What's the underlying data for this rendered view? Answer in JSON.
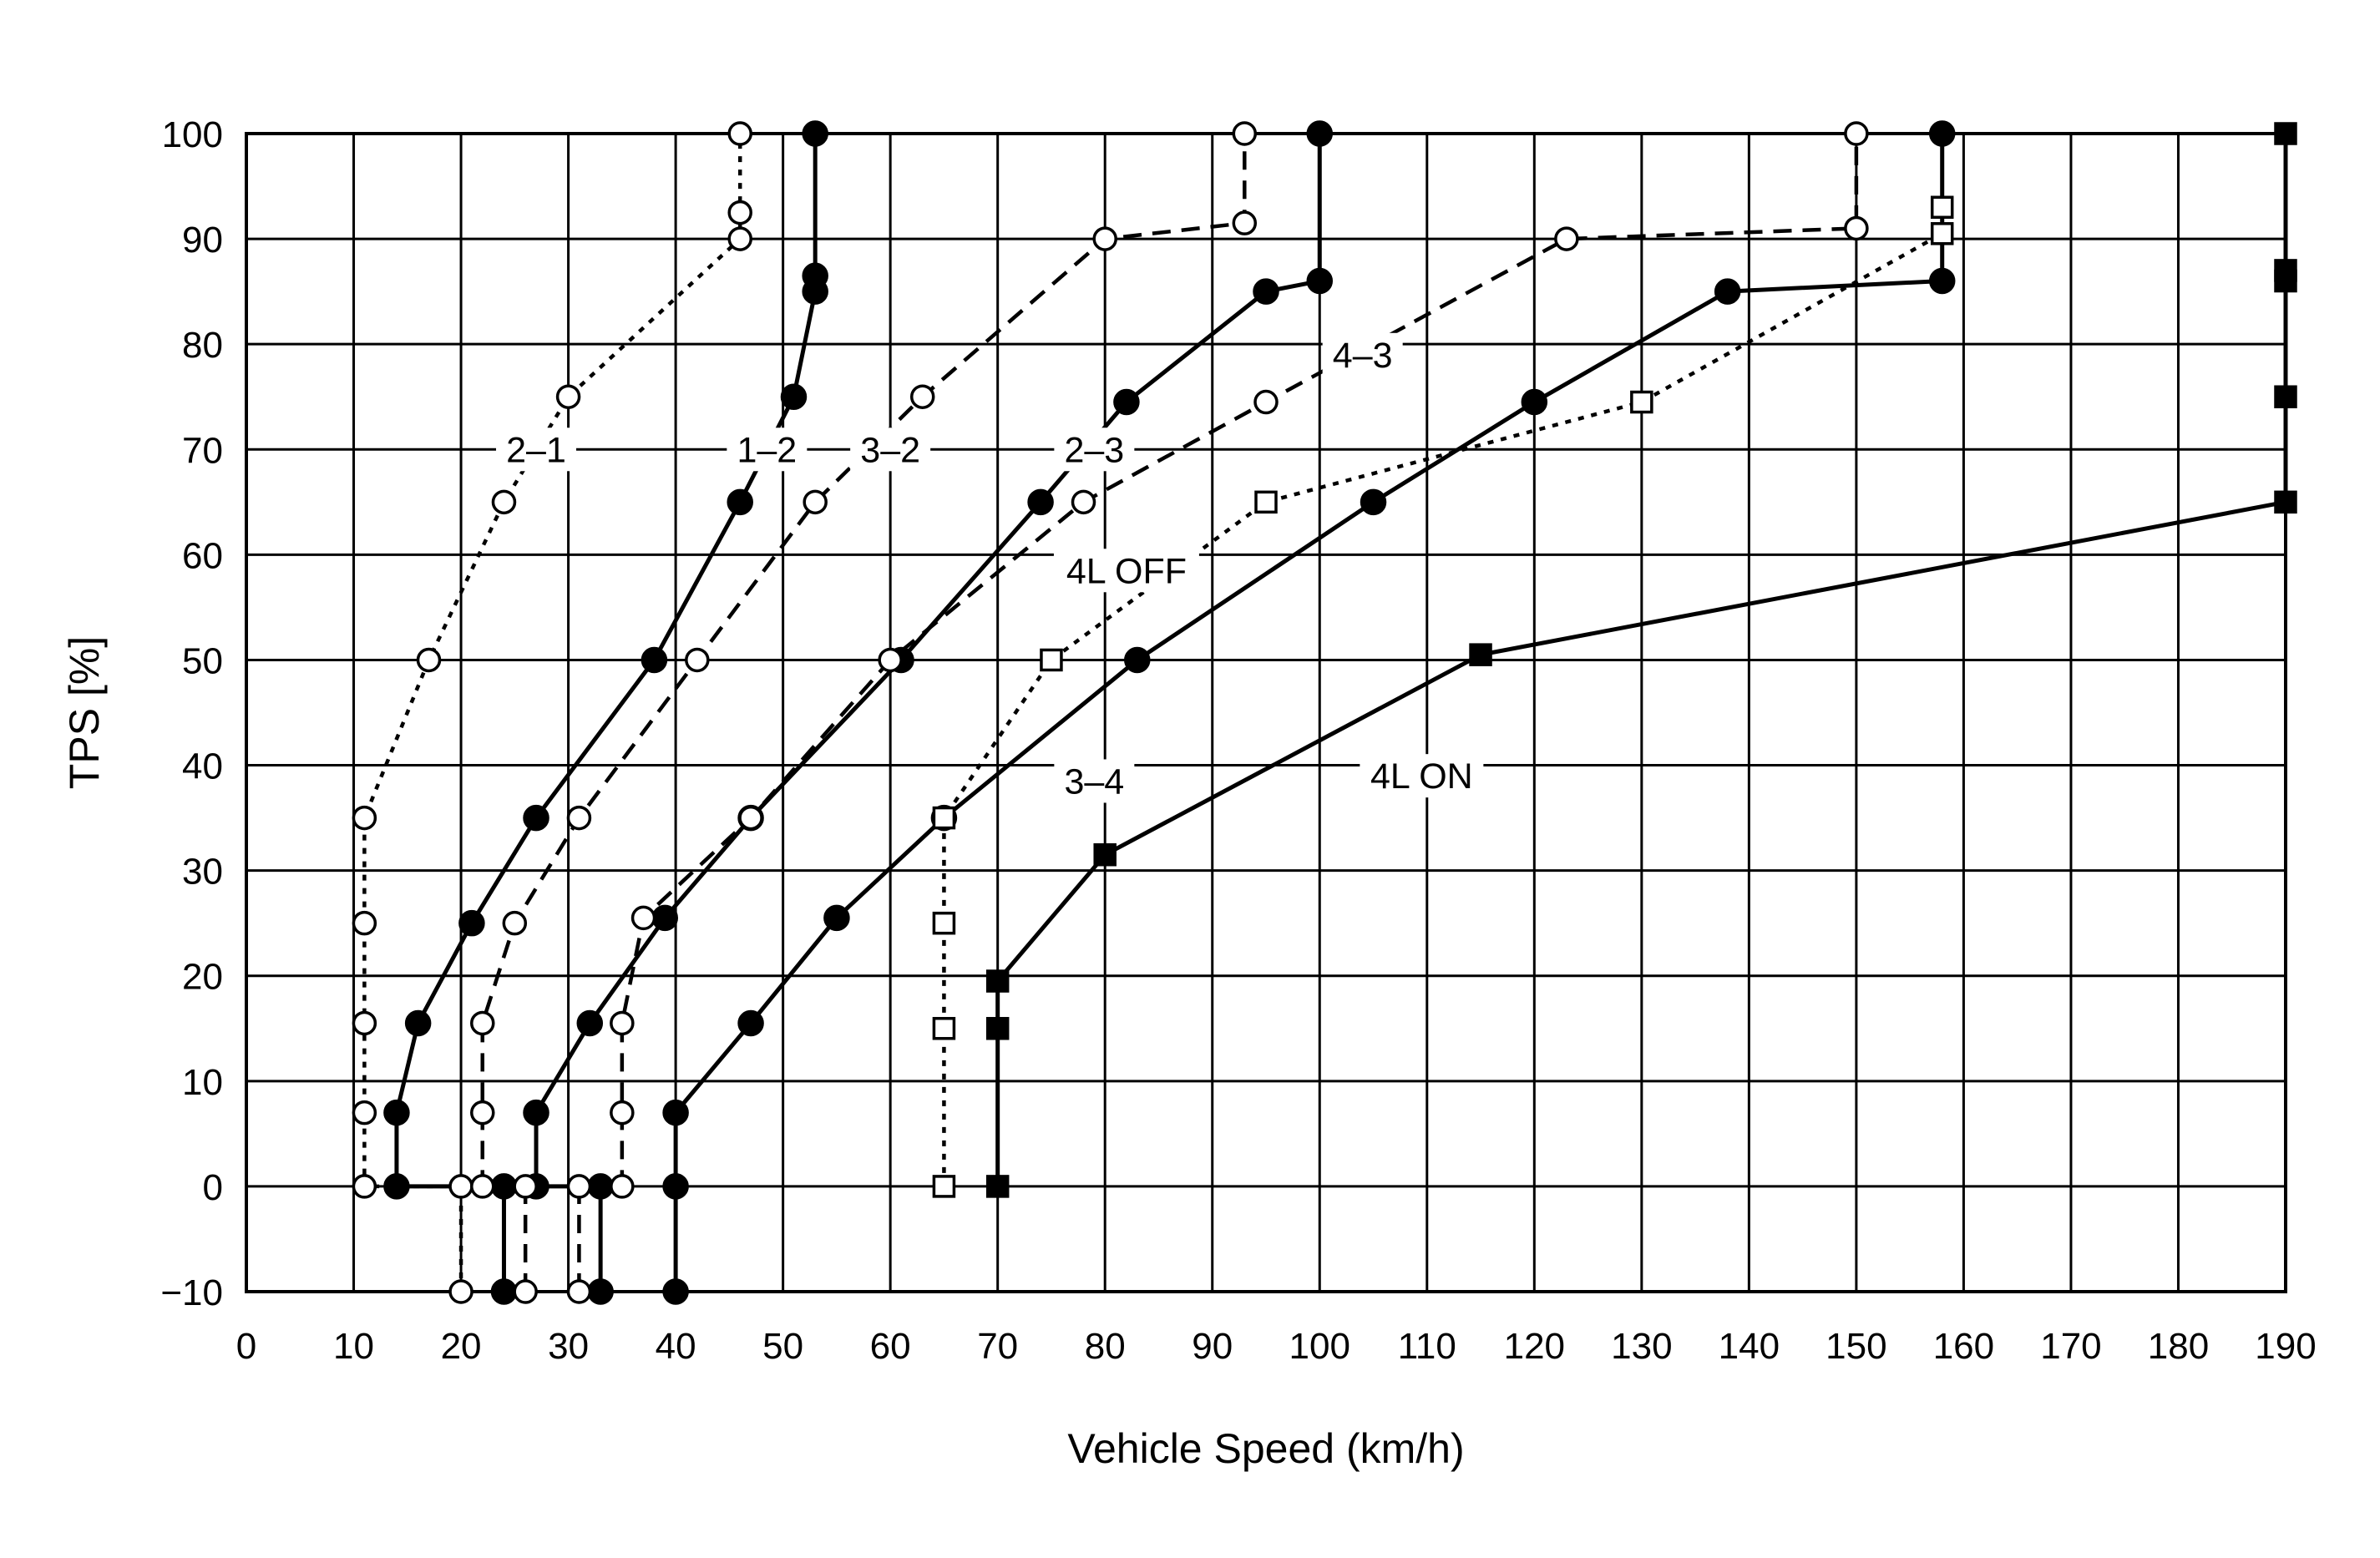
{
  "chart_data": {
    "type": "line",
    "title": "",
    "xlabel": "Vehicle Speed (km/h)",
    "ylabel": "TPS [%]",
    "xlim": [
      0,
      190
    ],
    "ylim": [
      -10,
      100
    ],
    "xticks": [
      0,
      10,
      20,
      30,
      40,
      50,
      60,
      70,
      80,
      90,
      100,
      110,
      120,
      130,
      140,
      150,
      160,
      170,
      180,
      190
    ],
    "yticks": [
      -10,
      0,
      10,
      20,
      30,
      40,
      50,
      60,
      70,
      80,
      90,
      100
    ],
    "grid": true,
    "colors": {
      "line": "#000000",
      "background": "#ffffff",
      "hollow_fill": "#ffffff"
    },
    "series": [
      {
        "name": "1-2",
        "line": "solid",
        "marker": "filled-circle",
        "x": [
          24,
          24,
          14,
          14,
          16,
          21,
          27,
          38,
          46,
          51,
          53,
          53,
          53
        ],
        "y": [
          -10,
          0,
          0,
          7,
          15.5,
          25,
          35,
          50,
          65,
          75,
          85,
          86.5,
          100
        ]
      },
      {
        "name": "2-1",
        "line": "dotted",
        "marker": "hollow-circle",
        "x": [
          20,
          20,
          11,
          11,
          11,
          11,
          11,
          17,
          24,
          30,
          46,
          46,
          46
        ],
        "y": [
          -10,
          0,
          0,
          7,
          15.5,
          25,
          35,
          50,
          65,
          75,
          90,
          92.5,
          100
        ]
      },
      {
        "name": "2-3",
        "line": "solid",
        "marker": "filled-circle",
        "x": [
          33,
          33,
          27,
          27,
          32,
          39,
          47,
          61,
          74,
          82,
          95,
          100,
          100
        ],
        "y": [
          -10,
          0,
          0,
          7,
          15.5,
          25.5,
          35,
          50,
          65,
          74.5,
          85,
          86,
          100
        ]
      },
      {
        "name": "3-2",
        "line": "dashed",
        "marker": "hollow-circle",
        "x": [
          26,
          26,
          22,
          22,
          22,
          25,
          31,
          42,
          53,
          63,
          80,
          93,
          93
        ],
        "y": [
          -10,
          0,
          0,
          7,
          15.5,
          25,
          35,
          50,
          65,
          75,
          90,
          91.5,
          100
        ]
      },
      {
        "name": "3-4",
        "line": "solid",
        "marker": "filled-circle",
        "x": [
          40,
          40,
          40,
          47,
          55,
          65,
          83,
          105,
          120,
          138,
          158,
          158
        ],
        "y": [
          -10,
          0,
          7,
          15.5,
          25.5,
          35,
          50,
          65,
          74.5,
          85,
          86,
          100
        ]
      },
      {
        "name": "4-3",
        "line": "dashed",
        "marker": "hollow-circle",
        "x": [
          31,
          31,
          35,
          35,
          35,
          37,
          47,
          60,
          78,
          95,
          123,
          150,
          150
        ],
        "y": [
          -10,
          0,
          0,
          7,
          15.5,
          25.5,
          35,
          50,
          65,
          74.5,
          90,
          91,
          100
        ]
      },
      {
        "name": "4L OFF",
        "line": "dotted",
        "marker": "hollow-square",
        "x": [
          65,
          65,
          65,
          65,
          75,
          95,
          130,
          158,
          158
        ],
        "y": [
          0,
          15,
          25,
          35,
          50,
          65,
          74.5,
          90.5,
          93
        ]
      },
      {
        "name": "4L ON",
        "line": "solid",
        "marker": "filled-square",
        "x": [
          70,
          70,
          70,
          80,
          115,
          190,
          190,
          190,
          190,
          190
        ],
        "y": [
          0,
          15,
          19.5,
          31.5,
          50.5,
          65,
          75,
          86,
          87,
          100
        ]
      }
    ],
    "annotations": [
      {
        "text": "2–1",
        "series": "2-1"
      },
      {
        "text": "1–2",
        "series": "1-2"
      },
      {
        "text": "3–2",
        "series": "3-2"
      },
      {
        "text": "2–3",
        "series": "2-3"
      },
      {
        "text": "4–3",
        "series": "4-3"
      },
      {
        "text": "4L OFF",
        "series": "4L OFF"
      },
      {
        "text": "3–4",
        "series": "3-4"
      },
      {
        "text": "4L ON",
        "series": "4L ON"
      }
    ]
  }
}
